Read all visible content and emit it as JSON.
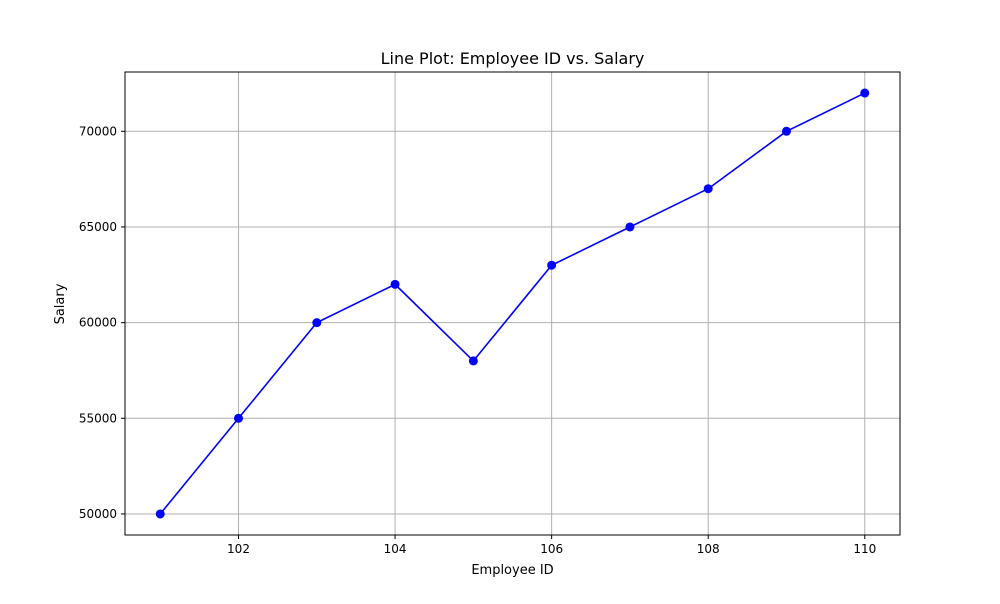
{
  "chart_data": {
    "type": "line",
    "title": "Line Plot: Employee ID vs. Salary",
    "xlabel": "Employee ID",
    "ylabel": "Salary",
    "xlim": [
      100.55,
      110.45
    ],
    "ylim": [
      48900,
      73100
    ],
    "xticks": [
      102,
      104,
      106,
      108,
      110
    ],
    "yticks": [
      50000,
      55000,
      60000,
      65000,
      70000
    ],
    "grid": true,
    "series": [
      {
        "color": "#0000ff",
        "marker": "circle",
        "x": [
          101,
          102,
          103,
          104,
          105,
          106,
          107,
          108,
          109,
          110
        ],
        "y": [
          50000,
          55000,
          60000,
          62000,
          58000,
          63000,
          65000,
          67000,
          70000,
          72000
        ]
      }
    ]
  }
}
